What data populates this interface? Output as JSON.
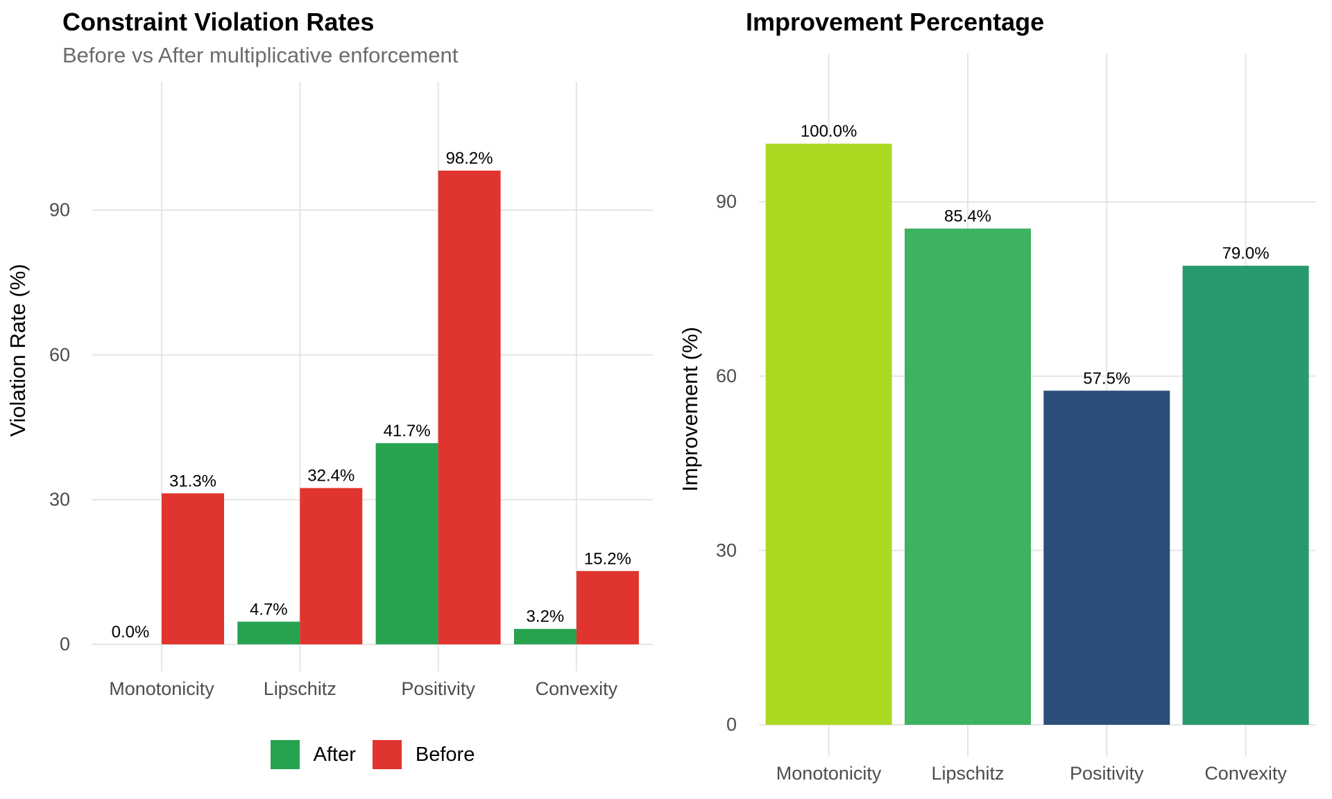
{
  "figure": {
    "background": "#ffffff",
    "grid_color": "#e5e5e5",
    "title_color": "#000000",
    "subtitle_color": "#6b6b6b",
    "tick_color": "#4d4d4d",
    "value_label_color": "#000000"
  },
  "chart_data": [
    {
      "type": "bar",
      "title": "Constraint Violation Rates",
      "subtitle": "Before vs After multiplicative enforcement",
      "xlabel": "",
      "ylabel": "Violation Rate (%)",
      "categories": [
        "Monotonicity",
        "Lipschitz",
        "Positivity",
        "Convexity"
      ],
      "series": [
        {
          "name": "After",
          "color": "#27a350",
          "values": [
            0.0,
            4.7,
            41.7,
            3.2
          ],
          "labels": [
            "0.0%",
            "4.7%",
            "41.7%",
            "3.2%"
          ]
        },
        {
          "name": "Before",
          "color": "#e0352f",
          "values": [
            31.3,
            32.4,
            98.2,
            15.2
          ],
          "labels": [
            "31.3%",
            "32.4%",
            "98.2%",
            "15.2%"
          ]
        }
      ],
      "yticks": [
        0,
        30,
        60,
        90
      ],
      "ylim": [
        -5.75,
        115.5
      ],
      "grid": true,
      "legend_position": "bottom"
    },
    {
      "type": "bar",
      "title": "Improvement Percentage",
      "subtitle": "",
      "xlabel": "",
      "ylabel": "Improvement (%)",
      "categories": [
        "Monotonicity",
        "Lipschitz",
        "Positivity",
        "Convexity"
      ],
      "series": [
        {
          "name": "Improvement",
          "colors": [
            "#abd922",
            "#3db25f",
            "#2a4e79",
            "#29996e"
          ],
          "values": [
            100.0,
            85.4,
            57.5,
            79.0
          ],
          "labels": [
            "100.0%",
            "85.4%",
            "57.5%",
            "79.0%"
          ]
        }
      ],
      "yticks": [
        0,
        30,
        60,
        90
      ],
      "ylim": [
        -5.75,
        115.5
      ],
      "grid": true,
      "legend_position": "none"
    }
  ],
  "legend": {
    "items": [
      {
        "label": "After",
        "color": "#27a350"
      },
      {
        "label": "Before",
        "color": "#e0352f"
      }
    ]
  }
}
